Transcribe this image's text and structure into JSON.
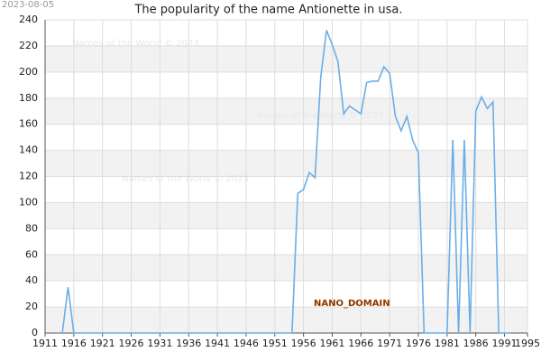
{
  "chart_data": {
    "type": "line",
    "title": "The popularity of the name Antionette in usa.",
    "stamp": "2023-08-05",
    "watermarks": [
      "Names of the World © 2023",
      "Names of the World © 2023",
      "Names of the World © 2023"
    ],
    "domain_label": "NANO_DOMAIN",
    "x": [
      1914,
      1915,
      1916,
      1917,
      1918,
      1919,
      1920,
      1921,
      1922,
      1923,
      1924,
      1925,
      1926,
      1927,
      1928,
      1929,
      1930,
      1931,
      1932,
      1933,
      1934,
      1935,
      1936,
      1937,
      1938,
      1939,
      1940,
      1941,
      1942,
      1943,
      1944,
      1945,
      1946,
      1947,
      1948,
      1949,
      1950,
      1951,
      1952,
      1953,
      1954,
      1955,
      1956,
      1957,
      1958,
      1959,
      1960,
      1961,
      1962,
      1963,
      1964,
      1965,
      1966,
      1967,
      1968,
      1969,
      1970,
      1971,
      1972,
      1973,
      1974,
      1975,
      1976,
      1977,
      1978,
      1979,
      1980,
      1981,
      1982,
      1983,
      1984,
      1985,
      1986,
      1987,
      1988,
      1989,
      1990,
      1991,
      1992
    ],
    "series": [
      {
        "name": "Antionette",
        "color": "#6aaee8",
        "values": [
          0,
          35,
          0,
          0,
          0,
          0,
          0,
          0,
          0,
          0,
          0,
          0,
          0,
          0,
          0,
          0,
          0,
          0,
          0,
          0,
          0,
          0,
          0,
          0,
          0,
          0,
          0,
          0,
          0,
          0,
          0,
          0,
          0,
          0,
          0,
          0,
          0,
          0,
          0,
          0,
          0,
          107,
          110,
          123,
          119,
          196,
          232,
          221,
          208,
          168,
          174,
          171,
          168,
          192,
          193,
          193,
          204,
          199,
          166,
          155,
          166,
          148,
          138,
          0,
          0,
          0,
          0,
          0,
          148,
          0,
          148,
          0,
          170,
          181,
          172,
          177,
          0,
          0,
          0
        ]
      }
    ],
    "xlim": [
      1911,
      1995
    ],
    "xticks": [
      1911,
      1916,
      1921,
      1926,
      1931,
      1936,
      1941,
      1946,
      1951,
      1956,
      1961,
      1966,
      1971,
      1976,
      1981,
      1986,
      1991,
      1995
    ],
    "ylim": [
      0,
      240
    ],
    "yticks": [
      0,
      20,
      40,
      60,
      80,
      100,
      120,
      140,
      160,
      180,
      200,
      220,
      240
    ],
    "grid": true
  }
}
